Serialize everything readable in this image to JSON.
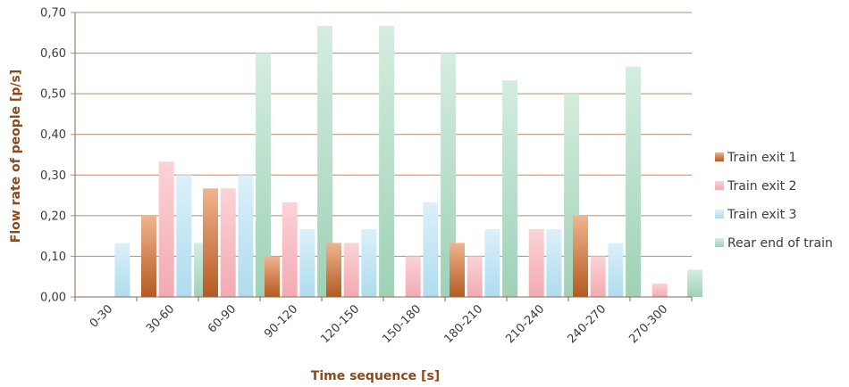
{
  "chart_data": {
    "type": "bar",
    "title": "",
    "xlabel": "Time sequence [s]",
    "ylabel": "Flow rate of people [p/s]",
    "ylim": [
      0,
      0.7
    ],
    "yticks": [
      "0,00",
      "0,10",
      "0,20",
      "0,30",
      "0,40",
      "0,50",
      "0,60",
      "0,70"
    ],
    "grid": true,
    "legend_position": "right",
    "categories": [
      "0-30",
      "30-60",
      "60-90",
      "90-120",
      "120-150",
      "150-180",
      "180-210",
      "210-240",
      "240-270",
      "270-300"
    ],
    "series": [
      {
        "name": "Train exit 1",
        "color_top": "#f0b48e",
        "color_bottom": "#b45a22",
        "values": [
          0,
          0.2,
          0.267,
          0.1,
          0.133,
          0,
          0.133,
          0,
          0.2,
          0
        ]
      },
      {
        "name": "Train exit 2",
        "color_top": "#fbd3d7",
        "color_bottom": "#f2aab2",
        "values": [
          0,
          0.333,
          0.267,
          0.233,
          0.133,
          0.1,
          0.1,
          0.167,
          0.1,
          0.033
        ]
      },
      {
        "name": "Train exit 3",
        "color_top": "#dcf0fa",
        "color_bottom": "#aedcef",
        "values": [
          0.133,
          0.3,
          0.3,
          0.167,
          0.167,
          0.233,
          0.167,
          0.167,
          0.133,
          0
        ]
      },
      {
        "name": "Rear end of train",
        "color_top": "#d4ede0",
        "color_bottom": "#9fd1b6",
        "values": [
          0,
          0.133,
          0.6,
          0.667,
          0.667,
          0.6,
          0.533,
          0.5,
          0.567,
          0.067
        ]
      }
    ]
  }
}
